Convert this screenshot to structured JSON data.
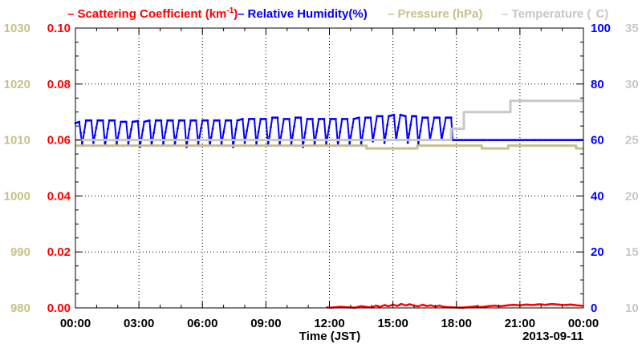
{
  "chart_data": {
    "type": "line",
    "legend": [
      {
        "name": "Scattering Coefficient (km",
        "superscript": "-1",
        "suffix": ")",
        "color": "#ff0000"
      },
      {
        "name": "Relative Humidity(%)",
        "color": "#0000ff"
      },
      {
        "name": "Pressure (hPa)",
        "color": "#c8c08a"
      },
      {
        "name": "Temperature (",
        "degree_symbol_hidden": true,
        "suffix": "C)",
        "color": "#c8c8c8"
      }
    ],
    "xlabel": "Time (JST)",
    "date_label": "2013-09-11",
    "x_ticks": [
      "00:00",
      "03:00",
      "06:00",
      "09:00",
      "12:00",
      "15:00",
      "18:00",
      "21:00",
      "00:00"
    ],
    "xlim_hours": [
      0,
      24
    ],
    "grid": true,
    "axes": {
      "scattering": {
        "ticks": [
          "0.00",
          "0.02",
          "0.04",
          "0.06",
          "0.08",
          "0.10"
        ],
        "range": [
          0,
          0.1
        ],
        "side": "left-inner",
        "color": "#ff0000"
      },
      "pressure": {
        "ticks": [
          "980",
          "990",
          "1000",
          "1010",
          "1020",
          "1030"
        ],
        "range": [
          980,
          1030
        ],
        "side": "left-outer",
        "color": "#c8c08a"
      },
      "humidity": {
        "ticks": [
          "0",
          "20",
          "40",
          "60",
          "80",
          "100"
        ],
        "range": [
          0,
          100
        ],
        "side": "right-inner",
        "color": "#0000ff"
      },
      "temperature": {
        "ticks": [
          "10",
          "15",
          "20",
          "25",
          "30",
          "35"
        ],
        "range": [
          10,
          35
        ],
        "side": "right-outer",
        "color": "#c8c8c8"
      }
    },
    "series": [
      {
        "name": "Relative Humidity(%)",
        "axis": "humidity",
        "color": "#0000ff",
        "points": [
          [
            0.0,
            66.0
          ],
          [
            0.18,
            66.5
          ],
          [
            0.32,
            58.5
          ],
          [
            0.5,
            67.0
          ],
          [
            0.75,
            67.0
          ],
          [
            0.85,
            59.0
          ],
          [
            1.05,
            67.0
          ],
          [
            1.3,
            67.0
          ],
          [
            1.4,
            58.0
          ],
          [
            1.6,
            67.0
          ],
          [
            1.85,
            67.0
          ],
          [
            1.95,
            58.5
          ],
          [
            2.15,
            66.5
          ],
          [
            2.4,
            66.5
          ],
          [
            2.5,
            58.5
          ],
          [
            2.7,
            66.5
          ],
          [
            2.95,
            66.8
          ],
          [
            3.05,
            57.5
          ],
          [
            3.25,
            66.5
          ],
          [
            3.5,
            67.0
          ],
          [
            3.6,
            58.0
          ],
          [
            3.8,
            67.0
          ],
          [
            4.05,
            67.0
          ],
          [
            4.15,
            58.5
          ],
          [
            4.35,
            67.0
          ],
          [
            4.6,
            67.0
          ],
          [
            4.7,
            58.5
          ],
          [
            4.9,
            67.0
          ],
          [
            5.15,
            67.0
          ],
          [
            5.25,
            57.5
          ],
          [
            5.45,
            67.0
          ],
          [
            5.7,
            67.0
          ],
          [
            5.8,
            58.5
          ],
          [
            6.0,
            67.0
          ],
          [
            6.25,
            67.0
          ],
          [
            6.35,
            58.0
          ],
          [
            6.55,
            67.0
          ],
          [
            6.8,
            67.0
          ],
          [
            6.9,
            58.5
          ],
          [
            7.1,
            67.0
          ],
          [
            7.35,
            67.0
          ],
          [
            7.45,
            57.5
          ],
          [
            7.65,
            67.0
          ],
          [
            7.9,
            67.5
          ],
          [
            8.0,
            59.0
          ],
          [
            8.2,
            67.5
          ],
          [
            8.45,
            67.5
          ],
          [
            8.55,
            58.5
          ],
          [
            8.75,
            67.5
          ],
          [
            9.0,
            67.5
          ],
          [
            9.1,
            58.0
          ],
          [
            9.3,
            68.0
          ],
          [
            9.55,
            68.0
          ],
          [
            9.65,
            58.5
          ],
          [
            9.85,
            67.5
          ],
          [
            10.1,
            67.5
          ],
          [
            10.2,
            58.5
          ],
          [
            10.4,
            68.0
          ],
          [
            10.65,
            68.0
          ],
          [
            10.75,
            57.5
          ],
          [
            10.95,
            67.5
          ],
          [
            11.2,
            67.5
          ],
          [
            11.3,
            58.5
          ],
          [
            11.5,
            67.5
          ],
          [
            11.75,
            67.5
          ],
          [
            11.85,
            58.5
          ],
          [
            12.05,
            67.5
          ],
          [
            12.3,
            67.5
          ],
          [
            12.4,
            58.0
          ],
          [
            12.6,
            67.5
          ],
          [
            12.85,
            67.5
          ],
          [
            12.95,
            58.5
          ],
          [
            13.15,
            67.5
          ],
          [
            13.4,
            68.0
          ],
          [
            13.5,
            58.5
          ],
          [
            13.7,
            68.0
          ],
          [
            13.95,
            68.0
          ],
          [
            14.05,
            59.5
          ],
          [
            14.25,
            68.5
          ],
          [
            14.5,
            68.5
          ],
          [
            14.6,
            59.0
          ],
          [
            14.8,
            68.5
          ],
          [
            15.05,
            69.0
          ],
          [
            15.15,
            60.0
          ],
          [
            15.35,
            69.0
          ],
          [
            15.6,
            68.5
          ],
          [
            15.7,
            59.0
          ],
          [
            15.9,
            68.5
          ],
          [
            16.1,
            68.5
          ],
          [
            16.2,
            58.5
          ],
          [
            16.4,
            68.0
          ],
          [
            16.65,
            68.0
          ],
          [
            16.75,
            60.0
          ],
          [
            16.95,
            68.0
          ],
          [
            17.2,
            68.0
          ],
          [
            17.3,
            60.0
          ],
          [
            17.5,
            68.0
          ],
          [
            17.75,
            68.0
          ],
          [
            17.82,
            60.0
          ],
          [
            24.0,
            60.0
          ]
        ]
      },
      {
        "name": "Pressure (hPa)",
        "axis": "pressure",
        "color": "#c8c08a",
        "points": [
          [
            0.0,
            1009.0
          ],
          [
            13.75,
            1009.0
          ],
          [
            13.75,
            1008.5
          ],
          [
            16.15,
            1008.5
          ],
          [
            16.15,
            1009.0
          ],
          [
            19.2,
            1009.0
          ],
          [
            19.2,
            1008.5
          ],
          [
            20.45,
            1008.5
          ],
          [
            20.45,
            1009.0
          ],
          [
            23.65,
            1009.0
          ],
          [
            23.65,
            1008.5
          ],
          [
            24.0,
            1008.5
          ]
        ]
      },
      {
        "name": "Temperature (C)",
        "axis": "temperature",
        "color": "#c8c8c8",
        "points": [
          [
            0.0,
            25.0
          ],
          [
            17.75,
            25.0
          ],
          [
            17.75,
            26.0
          ],
          [
            18.35,
            26.0
          ],
          [
            18.35,
            27.5
          ],
          [
            20.55,
            27.5
          ],
          [
            20.55,
            28.5
          ],
          [
            24.0,
            28.5
          ]
        ]
      },
      {
        "name": "Scattering Coefficient (km-1)",
        "axis": "scattering",
        "color": "#ff0000",
        "points": [
          [
            11.9,
            0.0002
          ],
          [
            12.1,
            0.0001
          ],
          [
            12.5,
            0.0004
          ],
          [
            12.9,
            0.0002
          ],
          [
            13.2,
            0.0001
          ],
          [
            13.5,
            0.0006
          ],
          [
            13.8,
            0.0003
          ],
          [
            14.0,
            0.0002
          ],
          [
            14.2,
            0.0008
          ],
          [
            14.4,
            0.0004
          ],
          [
            14.6,
            0.001
          ],
          [
            14.8,
            0.0006
          ],
          [
            15.0,
            0.0012
          ],
          [
            15.2,
            0.0007
          ],
          [
            15.4,
            0.0014
          ],
          [
            15.6,
            0.0009
          ],
          [
            15.8,
            0.0013
          ],
          [
            16.0,
            0.0008
          ],
          [
            16.2,
            0.0006
          ],
          [
            16.4,
            0.0011
          ],
          [
            16.6,
            0.0007
          ],
          [
            16.8,
            0.0009
          ],
          [
            17.0,
            0.0005
          ],
          [
            17.2,
            0.0008
          ],
          [
            17.4,
            0.0004
          ],
          [
            17.7,
            0.0002
          ],
          [
            18.3,
            0.0001
          ],
          [
            18.6,
            0.0003
          ],
          [
            18.9,
            0.0005
          ],
          [
            19.2,
            0.0003
          ],
          [
            19.5,
            0.0006
          ],
          [
            19.8,
            0.0008
          ],
          [
            20.1,
            0.0006
          ],
          [
            20.4,
            0.0009
          ],
          [
            20.7,
            0.0011
          ],
          [
            21.0,
            0.0009
          ],
          [
            21.3,
            0.0012
          ],
          [
            21.6,
            0.001
          ],
          [
            21.9,
            0.0013
          ],
          [
            22.2,
            0.0011
          ],
          [
            22.5,
            0.0014
          ],
          [
            22.8,
            0.0012
          ],
          [
            23.1,
            0.001
          ],
          [
            23.4,
            0.0012
          ],
          [
            23.7,
            0.0009
          ],
          [
            24.0,
            0.0007
          ]
        ]
      }
    ]
  }
}
